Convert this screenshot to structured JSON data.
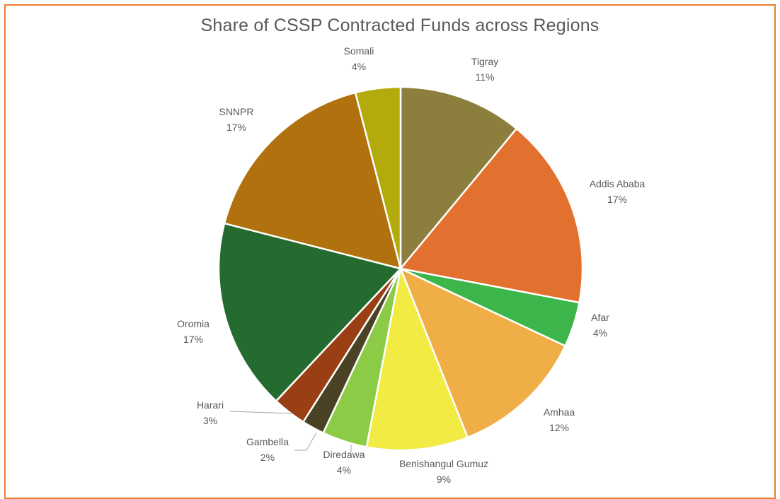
{
  "chart_data": {
    "type": "pie",
    "title": "Share of CSSP Contracted Funds across Regions",
    "start_angle_deg": 0,
    "direction": "clockwise",
    "legend": "none",
    "slices": [
      {
        "label": "Tigray",
        "value": 11,
        "pct_label": "11%",
        "color": "#8C7E3C"
      },
      {
        "label": "Addis Ababa",
        "value": 17,
        "pct_label": "17%",
        "color": "#E2702E"
      },
      {
        "label": "Afar",
        "value": 4,
        "pct_label": "4%",
        "color": "#3CB54A"
      },
      {
        "label": "Amhaa",
        "value": 12,
        "pct_label": "12%",
        "color": "#EFAE46"
      },
      {
        "label": "Benishangul Gumuz",
        "value": 9,
        "pct_label": "9%",
        "color": "#F1EB43"
      },
      {
        "label": "Diredawa",
        "value": 4,
        "pct_label": "4%",
        "color": "#8CCB46"
      },
      {
        "label": "Gambella",
        "value": 2,
        "pct_label": "2%",
        "color": "#4A4225"
      },
      {
        "label": "Harari",
        "value": 3,
        "pct_label": "3%",
        "color": "#9A3E14"
      },
      {
        "label": "Oromia",
        "value": 17,
        "pct_label": "17%",
        "color": "#256B30"
      },
      {
        "label": "SNNPR",
        "value": 17,
        "pct_label": "17%",
        "color": "#B0710E"
      },
      {
        "label": "Somali",
        "value": 4,
        "pct_label": "4%",
        "color": "#B3AA0B"
      }
    ]
  }
}
